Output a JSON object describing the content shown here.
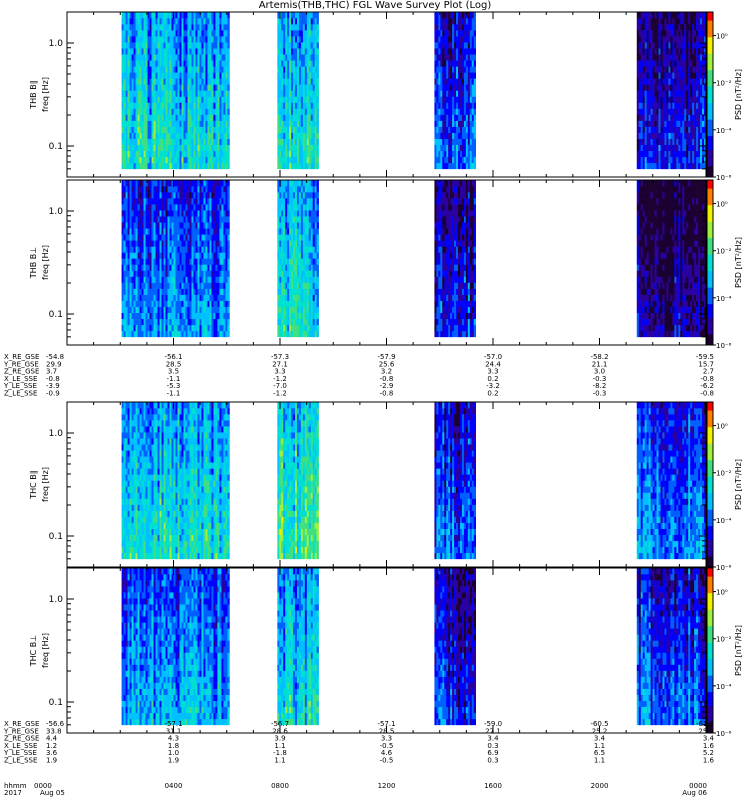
{
  "title": "Artemis(THB,THC) FGL Wave Survey Plot (Log)",
  "colors": {
    "bg": "#ffffff",
    "axis": "#000000",
    "colormap": [
      "#1b0030",
      "#2a00a0",
      "#0000ff",
      "#0060ff",
      "#00c0ff",
      "#00e0d0",
      "#40e080",
      "#a0f040",
      "#f0f000",
      "#ff8000",
      "#ff0000"
    ]
  },
  "x_axis": {
    "ticks": [
      "0000",
      "0400",
      "0800",
      "1200",
      "1600",
      "2000",
      "0000"
    ],
    "dates": [
      "Aug 05",
      "Aug 06"
    ],
    "label_hhmm": "hhmm",
    "label_year": "2017"
  },
  "panels": [
    {
      "ylabel": "THB B∥",
      "ylabel2": "freq [Hz]",
      "cblabel": "PSD [nT²/Hz]"
    },
    {
      "ylabel": "THB B⊥",
      "ylabel2": "freq [Hz]",
      "cblabel": "PSD [nT²/Hz]"
    },
    {
      "ylabel": "THC B∥",
      "ylabel2": "freq [Hz]",
      "cblabel": "PSD [nT²/Hz]"
    },
    {
      "ylabel": "THC B⊥",
      "ylabel2": "freq [Hz]",
      "cblabel": "PSD [nT²/Hz]"
    }
  ],
  "y_ticks": [
    "1.0",
    "0.1"
  ],
  "colorbar_ticks": [
    "10⁰",
    "10⁻²",
    "10⁻⁴",
    "10⁻⁶"
  ],
  "ephem_blocks": [
    {
      "rows": [
        {
          "label": "X_RE_GSE",
          "values": [
            "-54.8",
            "-56.1",
            "-57.3",
            "-57.9",
            "-57.0",
            "-58.2",
            "-59.5"
          ]
        },
        {
          "label": "Y_RE_GSE",
          "values": [
            "29.9",
            "28.5",
            "27.1",
            "25.6",
            "24.4",
            "21.1",
            "15.7"
          ]
        },
        {
          "label": "Z_RE_GSE",
          "values": [
            "3.7",
            "3.5",
            "3.3",
            "3.2",
            "3.3",
            "3.0",
            "2.7"
          ]
        },
        {
          "label": "X_LE_SSE",
          "values": [
            "-0.8",
            "-1.1",
            "-1.2",
            "-0.8",
            "0.2",
            "-0.3",
            "-0.8"
          ]
        },
        {
          "label": "Y_LE_SSE",
          "values": [
            "-3.9",
            "-5.3",
            "-7.0",
            "-2.9",
            "-3.2",
            "-8.2",
            "-6.2"
          ]
        },
        {
          "label": "Z_LE_SSE",
          "values": [
            "-0.9",
            "-1.1",
            "-1.2",
            "-0.8",
            "0.2",
            "-0.3",
            "-0.8"
          ]
        }
      ]
    },
    {
      "rows": [
        {
          "label": "X_RE_GSE",
          "values": [
            "-56.6",
            "-57.1",
            "-56.7",
            "-57.1",
            "-59.0",
            "-60.5",
            "-61.5"
          ]
        },
        {
          "label": "Y_RE_GSE",
          "values": [
            "33.8",
            "31.1",
            "28.6",
            "28.5",
            "27.1",
            "25.2",
            "25.2"
          ]
        },
        {
          "label": "Z_RE_GSE",
          "values": [
            "4.4",
            "4.3",
            "3.9",
            "3.3",
            "3.4",
            "3.4",
            "3.4"
          ]
        },
        {
          "label": "X_LE_SSE",
          "values": [
            "1.2",
            "1.8",
            "1.1",
            "-0.5",
            "0.3",
            "1.1",
            "1.6"
          ]
        },
        {
          "label": "Y_LE_SSE",
          "values": [
            "3.6",
            "1.0",
            "-1.8",
            "4.6",
            "6.9",
            "6.5",
            "5.2"
          ]
        },
        {
          "label": "Z_LE_SSE",
          "values": [
            "1.9",
            "1.9",
            "1.1",
            "-0.5",
            "0.3",
            "1.1",
            "1.6"
          ]
        }
      ]
    }
  ],
  "chart_data": {
    "type": "heatmap",
    "title": "Artemis(THB,THC) FGL Wave Survey Plot (Log)",
    "x_range_hours": [
      0,
      24
    ],
    "y_range_hz": [
      0.05,
      2.0
    ],
    "y_scale": "log",
    "z_scale": "log",
    "z_range": [
      1e-06,
      10
    ],
    "data_segments_hours": [
      [
        2.05,
        6.1
      ],
      [
        7.9,
        9.45
      ],
      [
        13.8,
        15.35
      ],
      [
        21.4,
        24.0
      ]
    ],
    "freq_bins_hz": [
      0.06,
      2.0
    ],
    "series": [
      {
        "name": "THB B∥",
        "segment_levels_log10": [
          -2.5,
          -2.2,
          -4.0,
          -4.5
        ]
      },
      {
        "name": "THB B⊥",
        "segment_levels_log10": [
          -3.5,
          -2.5,
          -4.5,
          -5.0
        ]
      },
      {
        "name": "THC B∥",
        "segment_levels_log10": [
          -2.4,
          -1.8,
          -3.8,
          -3.5
        ]
      },
      {
        "name": "THC B⊥",
        "segment_levels_log10": [
          -3.2,
          -2.6,
          -4.2,
          -3.8
        ]
      }
    ]
  }
}
